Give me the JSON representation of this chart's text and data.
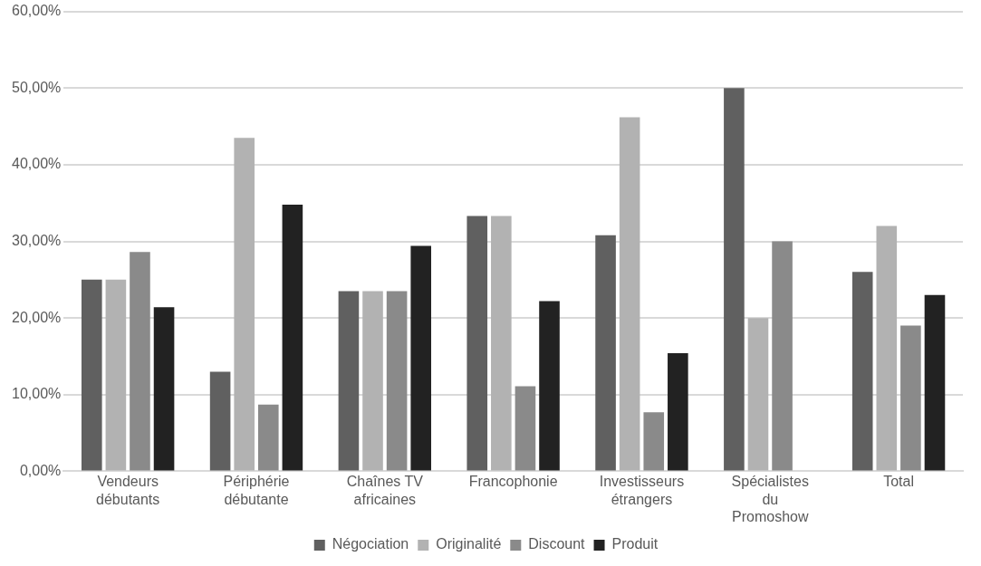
{
  "chart_data": {
    "type": "bar",
    "categories": [
      "Vendeurs\ndébutants",
      "Périphérie\ndébutante",
      "Chaînes TV\nafricaines",
      "Francophonie",
      "Investisseurs\nétrangers",
      "Spécialistes\ndu\nPromoshow",
      "Total"
    ],
    "series": [
      {
        "name": "Négociation",
        "color": "#606060",
        "values": [
          25,
          13.0,
          23.5,
          33.3,
          30.8,
          50,
          26
        ]
      },
      {
        "name": "Originalité",
        "color": "#b2b2b2",
        "values": [
          25,
          43.5,
          23.5,
          33.3,
          46.2,
          20,
          32
        ]
      },
      {
        "name": "Discount",
        "color": "#8a8a8a",
        "values": [
          28.6,
          8.7,
          23.5,
          11.1,
          7.7,
          30,
          19
        ]
      },
      {
        "name": "Produit",
        "color": "#222222",
        "values": [
          21.4,
          34.8,
          29.4,
          22.2,
          15.4,
          0,
          23
        ]
      }
    ],
    "ylim": [
      0,
      60
    ],
    "yticks": [
      {
        "value": 0,
        "label": "0,00%"
      },
      {
        "value": 10,
        "label": "10,00%"
      },
      {
        "value": 20,
        "label": "20,00%"
      },
      {
        "value": 30,
        "label": "30,00%"
      },
      {
        "value": 40,
        "label": "40,00%"
      },
      {
        "value": 50,
        "label": "50,00%"
      },
      {
        "value": 60,
        "label": "60,00%"
      }
    ],
    "grid": "y",
    "legend": "bottom"
  }
}
